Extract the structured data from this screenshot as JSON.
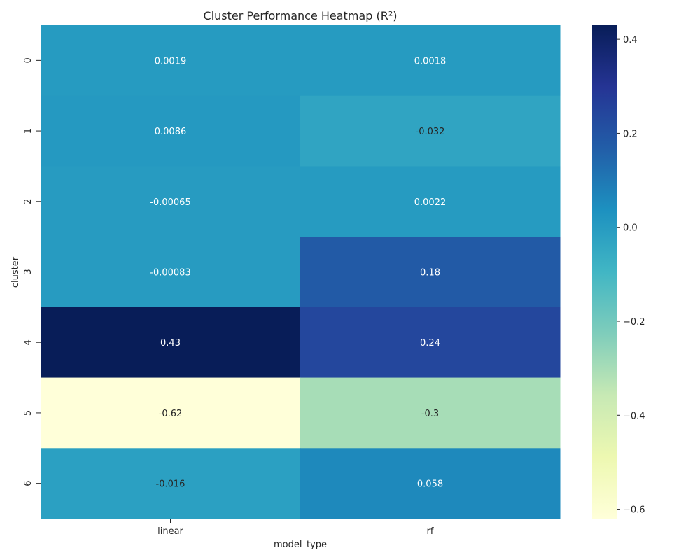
{
  "chart_data": {
    "type": "heatmap",
    "title": "Cluster Performance Heatmap (R²)",
    "xlabel": "model_type",
    "ylabel": "cluster",
    "x_categories": [
      "linear",
      "rf"
    ],
    "y_categories": [
      "0",
      "1",
      "2",
      "3",
      "4",
      "5",
      "6"
    ],
    "values": [
      [
        0.0019,
        0.0018
      ],
      [
        0.0086,
        -0.032
      ],
      [
        -0.00065,
        0.0022
      ],
      [
        -0.00083,
        0.18
      ],
      [
        0.43,
        0.24
      ],
      [
        -0.62,
        -0.3
      ],
      [
        -0.016,
        0.058
      ]
    ],
    "cell_labels": [
      [
        "0.0019",
        "0.0018"
      ],
      [
        "0.0086",
        "-0.032"
      ],
      [
        "-0.00065",
        "0.0022"
      ],
      [
        "-0.00083",
        "0.18"
      ],
      [
        "0.43",
        "0.24"
      ],
      [
        "-0.62",
        "-0.3"
      ],
      [
        "-0.016",
        "0.058"
      ]
    ],
    "colormap": "YlGnBu",
    "vmin": -0.62,
    "vmax": 0.43,
    "colorbar_ticks": [
      0.4,
      0.2,
      0.0,
      -0.2,
      -0.4,
      -0.6
    ],
    "colorbar_tick_labels": [
      "0.4",
      "0.2",
      "0.0",
      "−0.2",
      "−0.4",
      "−0.6"
    ],
    "grid": false,
    "legend": "colorbar-right"
  }
}
